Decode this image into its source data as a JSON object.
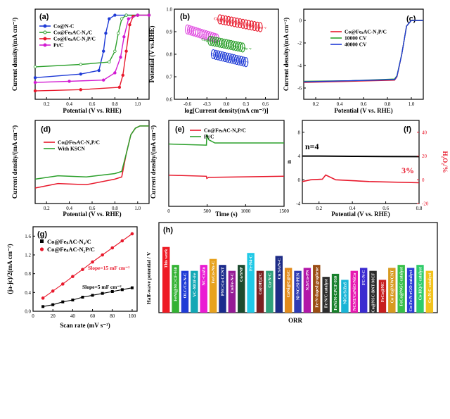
{
  "chart_data": [
    {
      "id": "a",
      "panel_label": "(a)",
      "type": "line",
      "xlabel": "Potential (V vs. RHE)",
      "ylabel": "Current density/(mA cm⁻²)",
      "xlim": [
        0.1,
        1.1
      ],
      "ylim": [
        -7,
        0.5
      ],
      "xticks": [
        "0.2",
        "0.4",
        "0.6",
        "0.8",
        "1.0"
      ],
      "series": [
        {
          "name": "Co@N-C",
          "color": "#1f3bd6",
          "marker": "diamond",
          "x": [
            0.1,
            0.5,
            0.66,
            0.7,
            0.72,
            0.75,
            0.8,
            0.9,
            1.0,
            1.1
          ],
          "y": [
            -5.2,
            -4.9,
            -4.6,
            -3.0,
            -1.5,
            -0.3,
            0,
            0,
            0,
            0
          ]
        },
        {
          "name": "Co@FeₛAC-N₄/C",
          "color": "#2ca02c",
          "marker": "open-diamond",
          "x": [
            0.1,
            0.5,
            0.75,
            0.8,
            0.83,
            0.86,
            0.9,
            1.0,
            1.1
          ],
          "y": [
            -4.3,
            -4.1,
            -3.9,
            -3.0,
            -1.5,
            -0.3,
            0,
            0,
            0
          ]
        },
        {
          "name": "Co@FeₛAC-N₂P/C",
          "color": "#e8192c",
          "marker": "circle",
          "x": [
            0.1,
            0.5,
            0.84,
            0.87,
            0.9,
            0.93,
            0.96,
            1.0,
            1.1
          ],
          "y": [
            -6.3,
            -6.2,
            -6.0,
            -5.0,
            -3.0,
            -0.8,
            -0.1,
            0,
            0
          ]
        },
        {
          "name": "Pt/C",
          "color": "#d21bd2",
          "marker": "star",
          "x": [
            0.1,
            0.4,
            0.7,
            0.8,
            0.85,
            0.88,
            0.92,
            1.0,
            1.1
          ],
          "y": [
            -5.6,
            -5.5,
            -5.4,
            -4.8,
            -3.5,
            -1.8,
            -0.3,
            0,
            0
          ]
        }
      ],
      "legend": "top-left"
    },
    {
      "id": "b",
      "panel_label": "(b)",
      "type": "line",
      "xlabel": "log[Current density(mA cm⁻²)]",
      "ylabel": "Potential (V vs.RHE)",
      "xlim": [
        -0.8,
        0.8
      ],
      "ylim": [
        0.6,
        1.0
      ],
      "xticks": [
        "-0.6",
        "-0.3",
        "0.0",
        "0.3",
        "0.6"
      ],
      "yticks": [
        "0.6",
        "0.7",
        "0.8",
        "0.9",
        "1.0"
      ],
      "series": [
        {
          "name": "Pt/C : 95 mV dec⁻¹",
          "color": "#e14de1",
          "x": [
            -0.6,
            -0.15
          ],
          "y": [
            0.91,
            0.87
          ]
        },
        {
          "name": "Co@FeₛAC-N₂P/C : 60 mV dec⁻¹",
          "color": "#e8192c",
          "x": [
            -0.1,
            0.52
          ],
          "y": [
            0.955,
            0.92
          ]
        },
        {
          "name": "Co@FeₛAC-N₄/C : 94 mV dec⁻¹",
          "color": "#2ca02c",
          "x": [
            -0.25,
            0.25
          ],
          "y": [
            0.86,
            0.83
          ]
        },
        {
          "name": "Co@N-C : 69 mV dec⁻¹",
          "color": "#1f3bd6",
          "x": [
            -0.2,
            0.3
          ],
          "y": [
            0.8,
            0.765
          ]
        }
      ]
    },
    {
      "id": "c",
      "panel_label": "(c)",
      "type": "line",
      "xlabel": "Potential (V vs. RHE)",
      "ylabel": "Current density/(mA cm⁻²)",
      "xlim": [
        0.1,
        1.1
      ],
      "ylim": [
        -7,
        1
      ],
      "xticks": [
        "0.2",
        "0.4",
        "0.6",
        "0.8",
        "1.0"
      ],
      "yticks": [
        "0",
        "-2",
        "-4",
        "-6"
      ],
      "series": [
        {
          "name": "Co@FeₛAC-N₂P/C",
          "color": "#e8192c",
          "x": [
            0.1,
            0.5,
            0.86,
            0.88,
            0.92,
            0.96,
            1.0,
            1.1
          ],
          "y": [
            -5.5,
            -5.4,
            -5.3,
            -5.0,
            -3.0,
            -0.5,
            0,
            0
          ]
        },
        {
          "name": "10000 CV",
          "color": "#2ca02c",
          "x": [
            0.1,
            0.5,
            0.86,
            0.88,
            0.92,
            0.96,
            1.0,
            1.1
          ],
          "y": [
            -5.4,
            -5.35,
            -5.2,
            -4.9,
            -3.0,
            -0.5,
            0,
            0
          ]
        },
        {
          "name": "40000 CV",
          "color": "#1f3bd6",
          "x": [
            0.1,
            0.5,
            0.86,
            0.88,
            0.92,
            0.96,
            1.0,
            1.1
          ],
          "y": [
            -5.45,
            -5.35,
            -5.25,
            -4.95,
            -3.0,
            -0.5,
            0,
            0
          ]
        }
      ]
    },
    {
      "id": "d",
      "panel_label": "(d)",
      "type": "line",
      "xlabel": "Potential (V vs. RHE)",
      "ylabel": "Current density/(mA cm⁻²)",
      "xlim": [
        0.1,
        1.1
      ],
      "ylim": [
        -7,
        0.5
      ],
      "xticks": [
        "0.2",
        "0.4",
        "0.6",
        "0.8",
        "1.0"
      ],
      "series": [
        {
          "name": "Co@FeₛAC-N₂P/C",
          "color": "#e8192c",
          "x": [
            0.1,
            0.3,
            0.55,
            0.8,
            0.86,
            0.9,
            0.94,
            0.98,
            1.02,
            1.1
          ],
          "y": [
            -5.6,
            -5.2,
            -5.3,
            -4.8,
            -4.6,
            -2.5,
            -0.8,
            -0.2,
            0,
            0
          ]
        },
        {
          "name": "With KSCN",
          "color": "#2ca02c",
          "x": [
            0.1,
            0.3,
            0.55,
            0.8,
            0.86,
            0.9,
            0.94,
            0.98,
            1.02,
            1.1
          ],
          "y": [
            -4.8,
            -4.5,
            -4.6,
            -4.3,
            -4.1,
            -2.5,
            -0.8,
            -0.2,
            0,
            0
          ]
        }
      ]
    },
    {
      "id": "e",
      "panel_label": "(e)",
      "type": "line",
      "xlabel": "Time (s)",
      "ylabel": "Current density/(mA cm⁻²)",
      "xlim": [
        0,
        1500
      ],
      "ylim": [
        -3,
        1
      ],
      "xticks": [
        "0",
        "500",
        "1000",
        "1500"
      ],
      "series": [
        {
          "name": "Co@FeₛAC-N₂P/C",
          "color": "#e8192c",
          "x": [
            0,
            490,
            495,
            520,
            1500
          ],
          "y": [
            -1.55,
            -1.6,
            -1.7,
            -1.65,
            -1.6
          ]
        },
        {
          "name": "Pt/C",
          "color": "#2ca02c",
          "x": [
            0,
            490,
            495,
            520,
            600,
            1500
          ],
          "y": [
            -0.1,
            -0.15,
            0.35,
            0.1,
            -0.05,
            -0.05
          ]
        }
      ]
    },
    {
      "id": "f",
      "panel_label": "(f)",
      "type": "line",
      "xlabel": "Potential (V vs. RHE)",
      "ylabel": "n",
      "ylabel_right": "H₂O₂/%",
      "xlim": [
        0.1,
        0.8
      ],
      "ylim": [
        -4,
        10
      ],
      "ylim_right": [
        -20,
        50
      ],
      "xticks": [
        "0.2",
        "0.4",
        "0.6",
        "0.8"
      ],
      "yticks": [
        "8",
        "4",
        "0",
        "-4"
      ],
      "yticks_right": [
        "40",
        "20",
        "0",
        "-20"
      ],
      "annotations": [
        "n=4",
        "3%"
      ],
      "series": [
        {
          "name": "n",
          "color": "#000000",
          "x": [
            0.1,
            0.2,
            0.4,
            0.6,
            0.8
          ],
          "y": [
            4.0,
            4.0,
            3.95,
            3.92,
            3.9
          ]
        },
        {
          "name": "H₂O₂ %",
          "color": "#e8192c",
          "x": [
            0.1,
            0.15,
            0.22,
            0.24,
            0.3,
            0.5,
            0.8
          ],
          "y": [
            -0.3,
            0.0,
            0.1,
            0.8,
            0.0,
            -0.3,
            -0.5
          ]
        }
      ]
    },
    {
      "id": "g",
      "panel_label": "(g)",
      "type": "scatter",
      "xlabel": "Scan rate (mV s⁻¹)",
      "ylabel": "(ja-jc)/2(mA cm⁻²)",
      "xlim": [
        0,
        105
      ],
      "ylim": [
        0,
        1.8
      ],
      "xticks": [
        "0",
        "20",
        "40",
        "60",
        "80",
        "100"
      ],
      "yticks": [
        "0.0",
        "0.4",
        "0.8",
        "1.2",
        "1.6"
      ],
      "annotations": [
        "Slope=15 mF cm⁻²",
        "Slope=5 mF cm⁻²"
      ],
      "series": [
        {
          "name": "Co@FeₛAC-N₄/C",
          "color": "#000000",
          "marker": "square",
          "x": [
            10,
            20,
            30,
            40,
            50,
            60,
            70,
            80,
            90,
            100
          ],
          "y": [
            0.1,
            0.14,
            0.2,
            0.24,
            0.3,
            0.34,
            0.38,
            0.42,
            0.46,
            0.5
          ]
        },
        {
          "name": "Co@FeₛAC-N₂P/C",
          "color": "#e8192c",
          "marker": "circle",
          "x": [
            10,
            20,
            30,
            40,
            50,
            60,
            70,
            80,
            90,
            100
          ],
          "y": [
            0.28,
            0.43,
            0.58,
            0.74,
            0.89,
            1.05,
            1.2,
            1.35,
            1.5,
            1.65
          ]
        }
      ]
    },
    {
      "id": "h",
      "panel_label": "(h)",
      "type": "bar",
      "xlabel": "ORR",
      "ylabel": "Half-wave potential / V",
      "categories": [
        "This work",
        "FeNi@NC/CF-950",
        "OLC/Co-N-C",
        "VC-MOF-Fe",
        "NC-CuZn",
        "Fe/Co-Nx-C",
        "PNC/Co CCNT",
        "Co/Fe-N-C",
        "Co/SNP",
        "Fe-N4-C",
        "Co(OH)2/C",
        "Cu-N-C",
        "Cu SA/N-C",
        "CoNi@C@GC",
        "Ni-NC/Si-PEN",
        "N,S/Co-PN",
        "Fe-N-doped graphene",
        "Fe-N/C catalyst",
        "FeNi/N-CPCF-950",
        "NiCo/S/ZnS",
        "NCNT/CoNiO-NiCo",
        "FC-N-C",
        "Co@NSC-BNT-MCF",
        "FeCo@NC",
        "Co-Fe@MWCNT",
        "FeCo@NGC catalyst",
        "Co-Fe-N-rGO catalyst",
        "Co-HQ/C catalyst",
        "Co-N-C catalyst"
      ],
      "values": [
        0.92,
        0.86,
        0.84,
        0.84,
        0.86,
        0.88,
        0.86,
        0.84,
        0.86,
        0.9,
        0.84,
        0.84,
        0.89,
        0.85,
        0.84,
        0.85,
        0.86,
        0.82,
        0.83,
        0.81,
        0.84,
        0.85,
        0.84,
        0.81,
        0.85,
        0.86,
        0.85,
        0.86,
        0.84
      ],
      "colors": [
        "#ee1b24",
        "#33b233",
        "#1f3bd6",
        "#12a7b5",
        "#ea1bd3",
        "#e7a21f",
        "#1b2b8c",
        "#951b96",
        "#1c4b2e",
        "#20c9e6",
        "#7a1f1f",
        "#2ea07a",
        "#1d2b86",
        "#e18a1c",
        "#2e3bb3",
        "#b217a8",
        "#9a4d14",
        "#2d2d2d",
        "#18802c",
        "#19b4d6",
        "#e61bb0",
        "#3b2bd0",
        "#2a2a2a",
        "#c71e1e",
        "#d79a20",
        "#38c04a",
        "#2d3dd6",
        "#2fcc6a",
        "#f2c21d"
      ],
      "ylim": [
        0.7,
        0.95
      ]
    }
  ]
}
